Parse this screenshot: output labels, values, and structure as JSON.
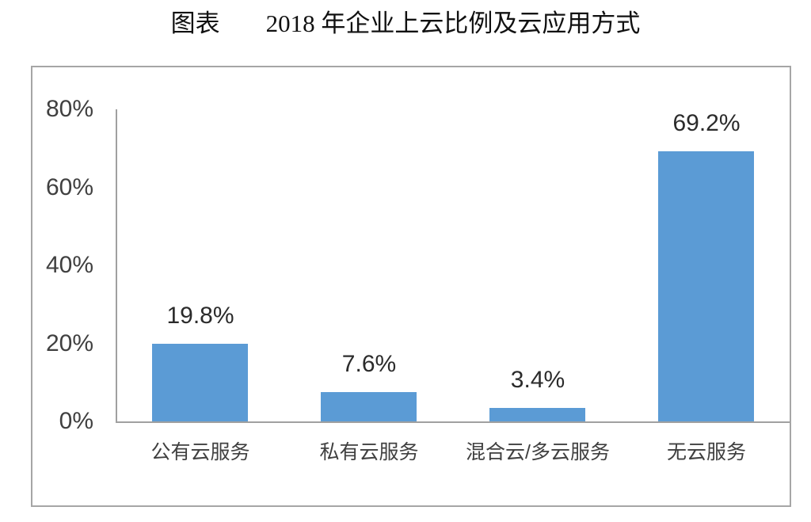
{
  "title": {
    "prefix": "图表",
    "main": "2018 年企业上云比例及云应用方式"
  },
  "chart_data": {
    "type": "bar",
    "title": "图表 2018 年企业上云比例及云应用方式",
    "categories": [
      "公有云服务",
      "私有云服务",
      "混合云/多云服务",
      "无云服务"
    ],
    "values": [
      19.8,
      7.6,
      3.4,
      69.2
    ],
    "data_labels": [
      "19.8%",
      "7.6%",
      "3.4%",
      "69.2%"
    ],
    "xlabel": "",
    "ylabel": "",
    "y_axis": {
      "min": 0,
      "max": 80,
      "ticks": [
        {
          "value": 80,
          "label": "80%"
        },
        {
          "value": 60,
          "label": "60%"
        },
        {
          "value": 40,
          "label": "40%"
        },
        {
          "value": 20,
          "label": "20%"
        },
        {
          "value": 0,
          "label": "0%"
        }
      ]
    },
    "grid": false,
    "legend": "none",
    "colors": {
      "bar": "#5B9BD5",
      "axis_line": "#A0A0A0",
      "frame_border": "#A6A6A6",
      "value_label_text": "#2B2B2B",
      "axis_text": "#404040",
      "title_text": "#111111",
      "background": "#FFFFFF"
    }
  }
}
